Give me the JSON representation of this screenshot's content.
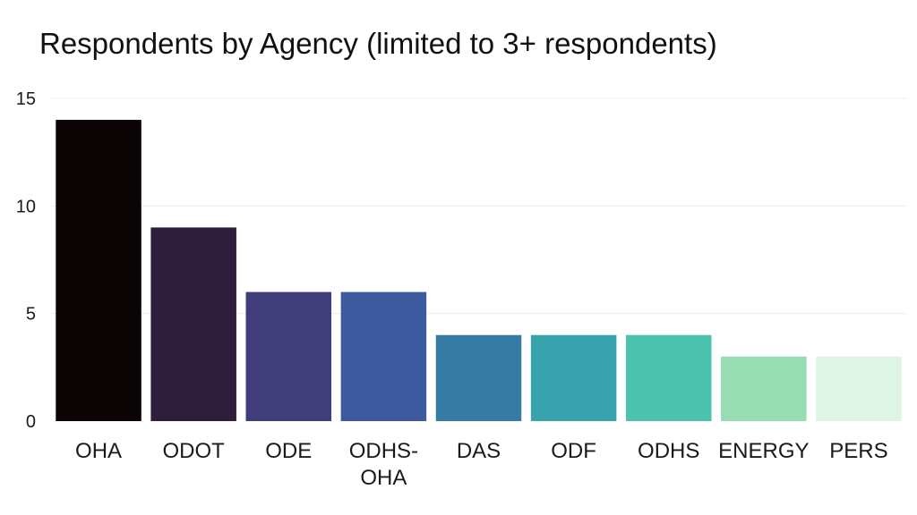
{
  "chart_data": {
    "type": "bar",
    "title": "Respondents by Agency (limited to 3+ respondents)",
    "xlabel": "",
    "ylabel": "",
    "categories": [
      "OHA",
      "ODOT",
      "ODE",
      "ODHS-OHA",
      "DAS",
      "ODF",
      "ODHS",
      "ENERGY",
      "PERS"
    ],
    "category_display": [
      [
        "OHA"
      ],
      [
        "ODOT"
      ],
      [
        "ODE"
      ],
      [
        "ODHS-",
        "OHA"
      ],
      [
        "DAS"
      ],
      [
        "ODF"
      ],
      [
        "ODHS"
      ],
      [
        "ENERGY"
      ],
      [
        "PERS"
      ]
    ],
    "values": [
      14,
      9,
      6,
      6,
      4,
      4,
      4,
      3,
      3
    ],
    "colors": [
      "#0b0405",
      "#2e1e3b",
      "#413d7b",
      "#3d5a9e",
      "#357ba3",
      "#38a3ad",
      "#4cc2ad",
      "#98dcb4",
      "#def5e5"
    ],
    "ylim": [
      0,
      15
    ],
    "yticks": [
      0,
      5,
      10,
      15
    ],
    "grid": true,
    "legend": "none"
  }
}
